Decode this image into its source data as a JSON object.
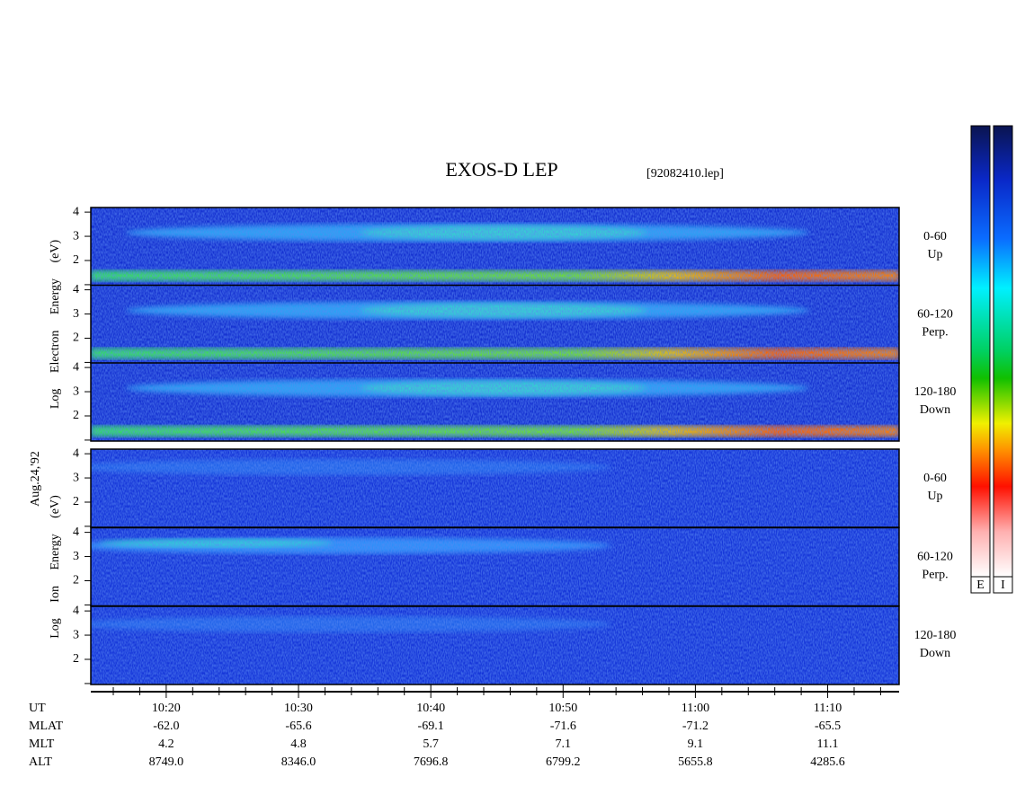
{
  "chart_data": {
    "type": "spectrogram",
    "title": "EXOS-D LEP",
    "subtitle": "[92082410.lep]",
    "date": "Aug.24,'92",
    "xlim": [
      614.3,
      675.4
    ],
    "xticks": [
      {
        "value": 620,
        "label": "10:20"
      },
      {
        "value": 630,
        "label": "10:30"
      },
      {
        "value": 640,
        "label": "10:40"
      },
      {
        "value": 650,
        "label": "10:50"
      },
      {
        "value": 660,
        "label": "11:00"
      },
      {
        "value": 670,
        "label": "11:10"
      }
    ],
    "minor_xticks": [
      616,
      618,
      622,
      624,
      626,
      628,
      632,
      634,
      636,
      638,
      642,
      644,
      646,
      648,
      652,
      654,
      656,
      658,
      662,
      664,
      666,
      668,
      672,
      674
    ],
    "ylim": [
      0.96,
      4.19
    ],
    "yticks": [
      2,
      3,
      4
    ],
    "minor_yticks": [
      1
    ],
    "groups": [
      {
        "ylabel": "Log Electron Energy (eV)",
        "colorbar": "E",
        "panels": [
          {
            "angle": "0-60",
            "direction": "Up"
          },
          {
            "angle": "60-120",
            "direction": "Perp."
          },
          {
            "angle": "120-180",
            "direction": "Down"
          }
        ]
      },
      {
        "ylabel": "Log Ion Energy (eV)",
        "colorbar": "I",
        "panels": [
          {
            "angle": "0-60",
            "direction": "Up"
          },
          {
            "angle": "60-120",
            "direction": "Perp."
          },
          {
            "angle": "120-180",
            "direction": "Down"
          }
        ]
      }
    ],
    "x_label": "UT",
    "orbit": [
      {
        "name": "MLAT",
        "values": [
          "-62.0",
          "-65.6",
          "-69.1",
          "-71.6",
          "-71.2",
          "-65.5"
        ]
      },
      {
        "name": "MLT",
        "values": [
          "4.2",
          "4.8",
          "5.7",
          "7.1",
          "9.1",
          "11.1"
        ]
      },
      {
        "name": "ALT",
        "values": [
          "8749.0",
          "8346.0",
          "7696.8",
          "6799.2",
          "5655.8",
          "4285.6"
        ]
      }
    ]
  }
}
